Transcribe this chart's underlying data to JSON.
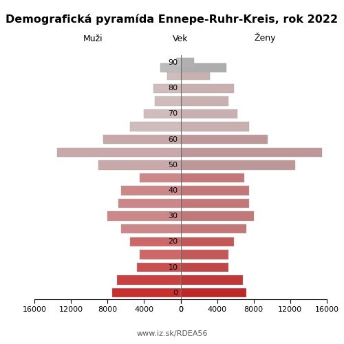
{
  "title": "Demografická pyramída Ennepe-Ruhr-Kreis, rok 2022",
  "label_left": "Muži",
  "label_right": "Ženy",
  "label_center": "Vek",
  "footer": "www.iz.sk/RDEA56",
  "ages": [
    0,
    5,
    10,
    15,
    20,
    25,
    30,
    35,
    40,
    45,
    50,
    55,
    60,
    65,
    70,
    75,
    80,
    85,
    88,
    90
  ],
  "males": [
    7500,
    7000,
    4800,
    4500,
    5500,
    6500,
    8000,
    6800,
    6500,
    4500,
    9000,
    13500,
    8500,
    5500,
    4000,
    2800,
    3000,
    1500,
    2200,
    500
  ],
  "females": [
    7200,
    6800,
    5200,
    5200,
    5800,
    7200,
    8000,
    7500,
    7500,
    7000,
    12500,
    15500,
    9500,
    7500,
    6200,
    5200,
    5800,
    3200,
    5000,
    1500
  ],
  "xlim": 16000,
  "age_tick_positions": [
    0,
    10,
    20,
    30,
    40,
    50,
    60,
    70,
    80,
    90
  ],
  "age_tick_labels": [
    "0",
    "10",
    "20",
    "30",
    "40",
    "50",
    "60",
    "70",
    "80",
    "90"
  ],
  "x_ticks": [
    0,
    4000,
    8000,
    12000,
    16000
  ],
  "x_tick_labels_left": [
    "0",
    "4000",
    "8000",
    "12000",
    "16000"
  ],
  "x_tick_labels_right": [
    "0",
    "4000",
    "8000",
    "12000",
    "16000"
  ],
  "bar_height": 0.72,
  "background": "#ffffff",
  "title_fontsize": 11.5,
  "header_fontsize": 9,
  "tick_fontsize": 8,
  "footer_fontsize": 8,
  "age_colors": {
    "90": "#c0c0c0",
    "88": "#bcbcbc",
    "85": "#d0bcbc",
    "80": "#d0bcbc",
    "75": "#d0bcbc",
    "70": "#d0bcbc",
    "65": "#d0bcbc",
    "60": "#c8a8a8",
    "55": "#c8a8a8",
    "50": "#c8a8a8",
    "45": "#cc8888",
    "40": "#cc8888",
    "35": "#cc8888",
    "30": "#cc8888",
    "25": "#cc8888",
    "20": "#cc6868",
    "15": "#cc6868",
    "10": "#c85050",
    "5": "#c84040",
    "0": "#c83030"
  },
  "female_colors": {
    "90": "#b0b0b0",
    "88": "#adadad",
    "85": "#c8b0b0",
    "80": "#c8b0b0",
    "75": "#c8b0b0",
    "70": "#c8b0b0",
    "65": "#c8b0b0",
    "60": "#be9898",
    "55": "#be9898",
    "50": "#be9898",
    "45": "#c27878",
    "40": "#c27878",
    "35": "#c27878",
    "30": "#c27878",
    "25": "#c27878",
    "20": "#c25858",
    "15": "#c25858",
    "10": "#be4848",
    "5": "#be3838",
    "0": "#be2828"
  }
}
